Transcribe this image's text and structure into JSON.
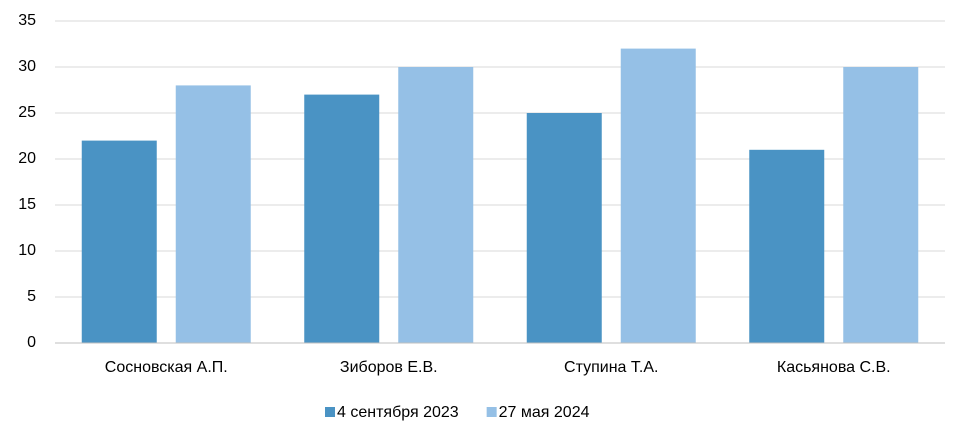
{
  "chart_data": {
    "type": "bar",
    "categories": [
      "Сосновская А.П.",
      "Зиборов Е.В.",
      "Ступина Т.А.",
      "Касьянова С.В."
    ],
    "series": [
      {
        "name": "4 сентября 2023",
        "color": "#4a93c4",
        "values": [
          22,
          27,
          25,
          21
        ]
      },
      {
        "name": "27 мая 2024",
        "color": "#95c0e6",
        "values": [
          28,
          30,
          32,
          30
        ]
      }
    ],
    "ylim": [
      0,
      35
    ],
    "yticks": [
      0,
      5,
      10,
      15,
      20,
      25,
      30,
      35
    ],
    "grid": true,
    "legend": "bottom"
  }
}
